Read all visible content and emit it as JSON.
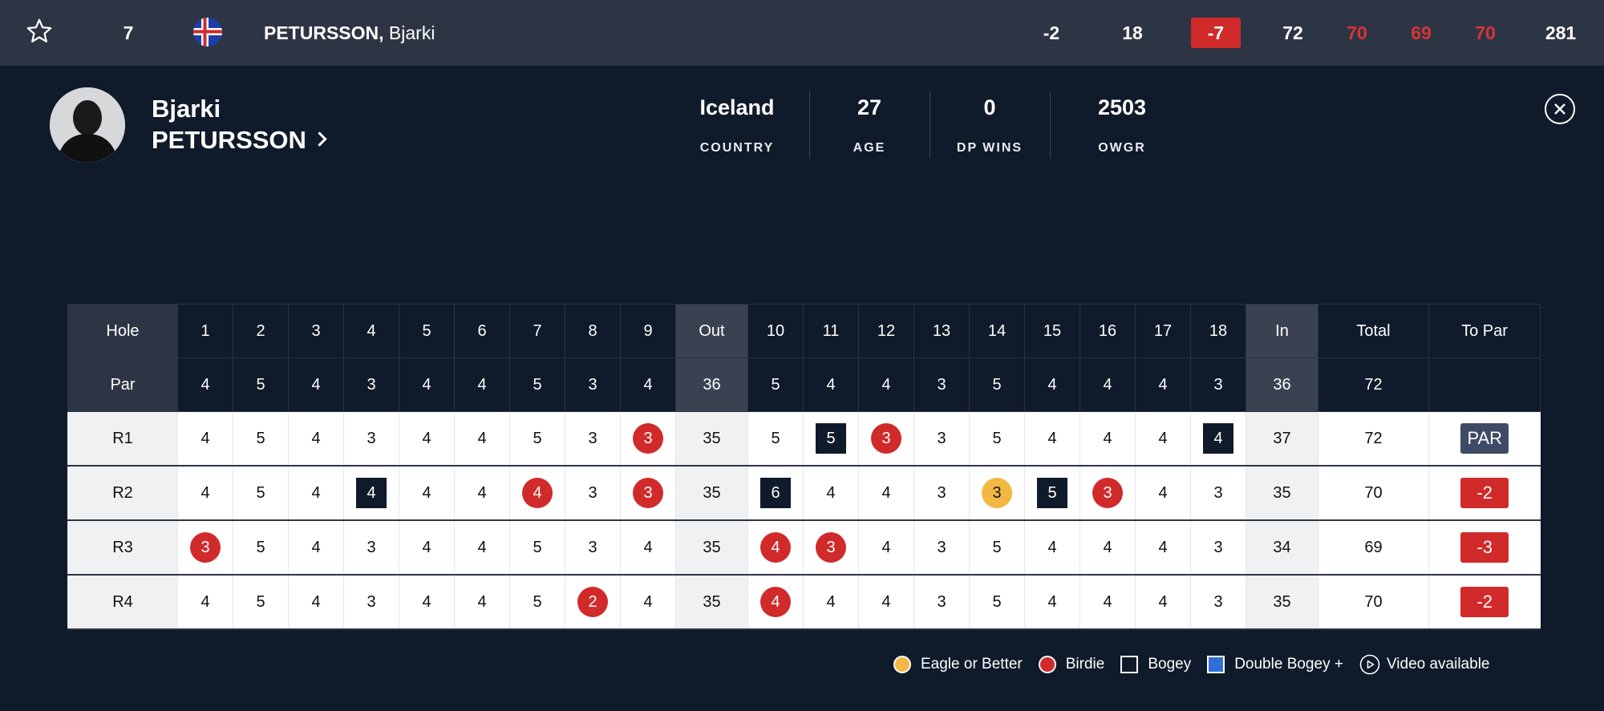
{
  "topbar": {
    "position": "7",
    "last_name": "PETURSSON,",
    "first_name": "Bjarki",
    "to_par_today": "-2",
    "thru": "18",
    "total_to_par": "-7",
    "rounds": [
      "72",
      "70",
      "69",
      "70"
    ],
    "total": "281"
  },
  "profile": {
    "first_name": "Bjarki",
    "last_name": "PETURSSON",
    "stats": [
      {
        "value": "Iceland",
        "label": "COUNTRY"
      },
      {
        "value": "27",
        "label": "AGE"
      },
      {
        "value": "0",
        "label": "DP WINS"
      },
      {
        "value": "2503",
        "label": "OWGR"
      }
    ]
  },
  "scorecard": {
    "hole_label": "Hole",
    "par_label": "Par",
    "holes": [
      "1",
      "2",
      "3",
      "4",
      "5",
      "6",
      "7",
      "8",
      "9",
      "Out",
      "10",
      "11",
      "12",
      "13",
      "14",
      "15",
      "16",
      "17",
      "18",
      "In",
      "Total",
      "To Par"
    ],
    "par": [
      "4",
      "5",
      "4",
      "3",
      "4",
      "4",
      "5",
      "3",
      "4",
      "36",
      "5",
      "4",
      "4",
      "3",
      "5",
      "4",
      "4",
      "4",
      "3",
      "36",
      "72",
      ""
    ],
    "rounds": [
      {
        "label": "R1",
        "scores": [
          "4",
          "5",
          "4",
          "3",
          "4",
          "4",
          "5",
          "3",
          "3",
          "35",
          "5",
          "5",
          "3",
          "3",
          "5",
          "4",
          "4",
          "4",
          "4",
          "37",
          "72"
        ],
        "marks": [
          "",
          "",
          "",
          "",
          "",
          "",
          "",
          "",
          "birdie",
          "",
          "",
          "bogey",
          "birdie",
          "",
          "",
          "",
          "",
          "",
          "bogey",
          "",
          ""
        ],
        "to_par": "PAR"
      },
      {
        "label": "R2",
        "scores": [
          "4",
          "5",
          "4",
          "4",
          "4",
          "4",
          "4",
          "3",
          "3",
          "35",
          "6",
          "4",
          "4",
          "3",
          "3",
          "5",
          "3",
          "4",
          "3",
          "35",
          "70"
        ],
        "marks": [
          "",
          "",
          "",
          "bogey",
          "",
          "",
          "birdie",
          "",
          "birdie",
          "",
          "bogey",
          "",
          "",
          "",
          "eagle",
          "bogey",
          "birdie",
          "",
          "",
          "",
          ""
        ],
        "to_par": "-2"
      },
      {
        "label": "R3",
        "scores": [
          "3",
          "5",
          "4",
          "3",
          "4",
          "4",
          "5",
          "3",
          "4",
          "35",
          "4",
          "3",
          "4",
          "3",
          "5",
          "4",
          "4",
          "4",
          "3",
          "34",
          "69"
        ],
        "marks": [
          "birdie",
          "",
          "",
          "",
          "",
          "",
          "",
          "",
          "",
          "",
          "birdie",
          "birdie",
          "",
          "",
          "",
          "",
          "",
          "",
          "",
          "",
          ""
        ],
        "to_par": "-3"
      },
      {
        "label": "R4",
        "scores": [
          "4",
          "5",
          "4",
          "3",
          "4",
          "4",
          "5",
          "2",
          "4",
          "35",
          "4",
          "4",
          "4",
          "3",
          "5",
          "4",
          "4",
          "4",
          "3",
          "35",
          "70"
        ],
        "marks": [
          "",
          "",
          "",
          "",
          "",
          "",
          "",
          "birdie",
          "",
          "",
          "birdie",
          "",
          "",
          "",
          "",
          "",
          "",
          "",
          "",
          "",
          ""
        ],
        "to_par": "-2"
      }
    ]
  },
  "legend": [
    {
      "label": "Eagle or Better",
      "color": "#f2b843",
      "shape": "circle"
    },
    {
      "label": "Birdie",
      "color": "#d12a2a",
      "shape": "circle"
    },
    {
      "label": "Bogey",
      "color": "#0f1a2a",
      "shape": "square"
    },
    {
      "label": "Double Bogey +",
      "color": "#2f6fd6",
      "shape": "square"
    },
    {
      "label": "Video available",
      "icon": "play-icon"
    }
  ]
}
